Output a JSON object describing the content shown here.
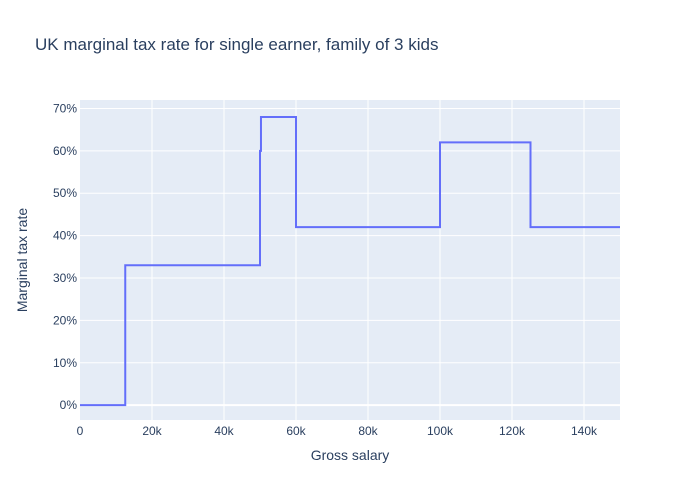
{
  "chart_data": {
    "type": "line",
    "line_shape": "step",
    "title": "UK marginal tax rate for single earner, family of 3 kids",
    "xlabel": "Gross salary",
    "ylabel": "Marginal tax rate",
    "xlim": [
      0,
      150000
    ],
    "ylim": [
      -0.035,
      0.72
    ],
    "x_ticks": [
      0,
      20000,
      40000,
      60000,
      80000,
      100000,
      120000,
      140000
    ],
    "x_tick_labels": [
      "0",
      "20k",
      "40k",
      "60k",
      "80k",
      "100k",
      "120k",
      "140k"
    ],
    "y_ticks": [
      0,
      0.1,
      0.2,
      0.3,
      0.4,
      0.5,
      0.6,
      0.7
    ],
    "y_tick_labels": [
      "0%",
      "10%",
      "20%",
      "30%",
      "40%",
      "50%",
      "60%",
      "70%"
    ],
    "grid": true,
    "colors": {
      "plot_bg": "#e5ecf6",
      "grid": "#ffffff",
      "line": "#636efa",
      "text": "#2a3f5f"
    },
    "series": [
      {
        "x": [
          0,
          12570,
          12570,
          50000,
          50000,
          50270,
          50270,
          60000,
          60000,
          100000,
          100000,
          125140,
          125140,
          150000
        ],
        "values": [
          0,
          0,
          0.33,
          0.33,
          0.6,
          0.6,
          0.68,
          0.68,
          0.42,
          0.42,
          0.62,
          0.62,
          0.42,
          0.42
        ]
      }
    ]
  }
}
